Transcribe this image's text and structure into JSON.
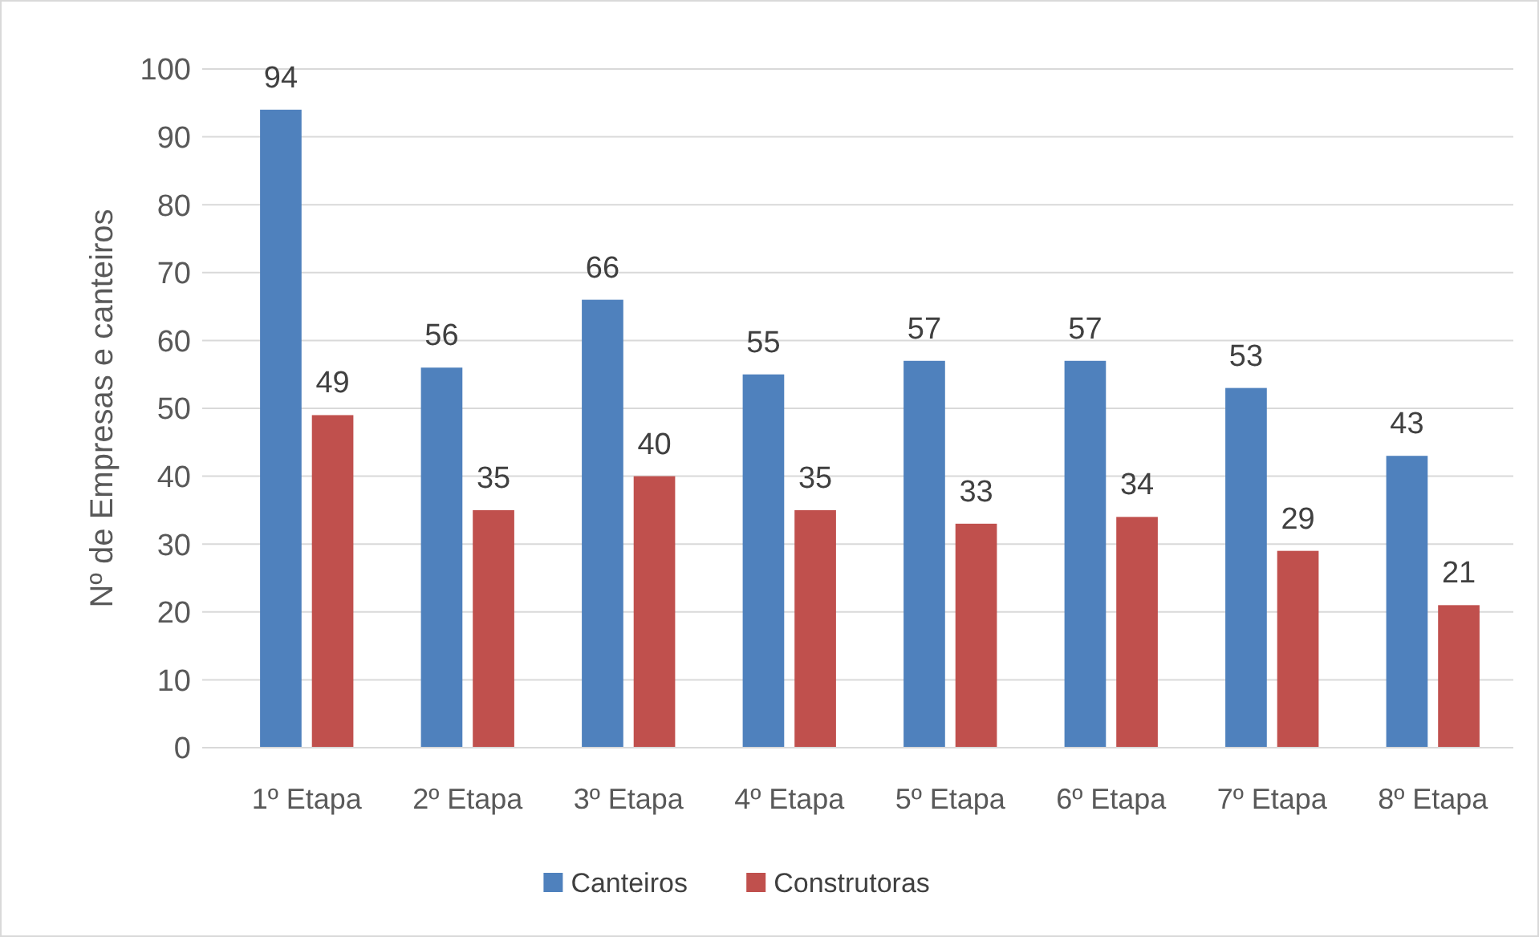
{
  "chart_data": {
    "type": "bar",
    "ylabel": "Nº de Empresas e canteiros",
    "categories": [
      "1º Etapa",
      "2º Etapa",
      "3º Etapa",
      "4º Etapa",
      "5º Etapa",
      "6º Etapa",
      "7º Etapa",
      "8º Etapa"
    ],
    "series": [
      {
        "name": "Canteiros",
        "color": "#4f81bd",
        "values": [
          94,
          56,
          66,
          55,
          57,
          57,
          53,
          43
        ]
      },
      {
        "name": "Construtoras",
        "color": "#c0504d",
        "values": [
          49,
          35,
          40,
          35,
          33,
          34,
          29,
          21
        ]
      }
    ],
    "ylim": [
      0,
      100
    ],
    "yticks": [
      0,
      10,
      20,
      30,
      40,
      50,
      60,
      70,
      80,
      90,
      100
    ],
    "grid": "y",
    "legend": "bottom",
    "data_labels": true
  }
}
